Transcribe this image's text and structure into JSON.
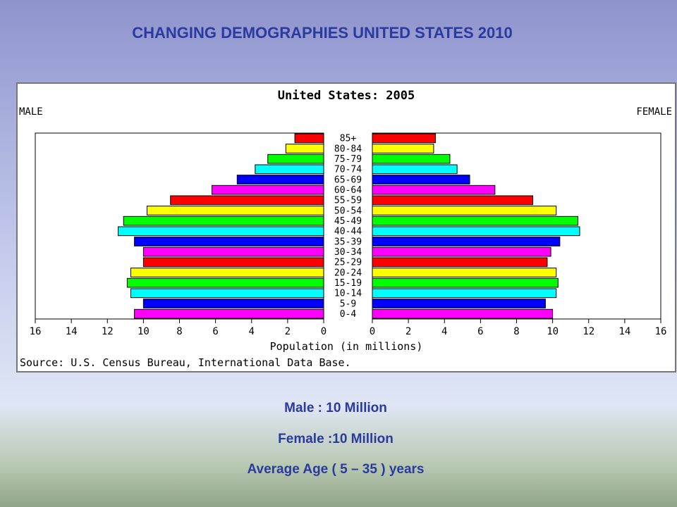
{
  "slide": {
    "title": "CHANGING DEMOGRAPHIES UNITED STATES 2010",
    "notes": [
      "Male : 10 Million",
      "Female :10 Million",
      "Average Age ( 5 – 35 ) years"
    ]
  },
  "chart_data": {
    "type": "bar",
    "title": "United States: 2005",
    "left_label": "MALE",
    "right_label": "FEMALE",
    "xlabel": "Population (in millions)",
    "source": "Source: U.S. Census Bureau, International Data Base.",
    "xlim": [
      0,
      16
    ],
    "ticks": [
      16,
      14,
      12,
      10,
      8,
      6,
      4,
      2,
      0
    ],
    "categories": [
      "85+",
      "80-84",
      "75-79",
      "70-74",
      "65-69",
      "60-64",
      "55-59",
      "50-54",
      "45-49",
      "40-44",
      "35-39",
      "30-34",
      "25-29",
      "20-24",
      "15-19",
      "10-14",
      "5-9",
      "0-4"
    ],
    "colors": [
      "#ff0000",
      "#ffff00",
      "#00ff00",
      "#00ffff",
      "#0000ff",
      "#ff00ff",
      "#ff0000",
      "#ffff00",
      "#00ff00",
      "#00ffff",
      "#0000ff",
      "#ff00ff",
      "#ff0000",
      "#ffff00",
      "#00ff00",
      "#00ffff",
      "#0000ff",
      "#ff00ff"
    ],
    "series": [
      {
        "name": "MALE",
        "values": [
          1.6,
          2.1,
          3.1,
          3.8,
          4.8,
          6.2,
          8.5,
          9.8,
          11.1,
          11.4,
          10.5,
          10.0,
          10.0,
          10.7,
          10.9,
          10.7,
          10.0,
          10.5
        ]
      },
      {
        "name": "FEMALE",
        "values": [
          3.5,
          3.4,
          4.3,
          4.7,
          5.4,
          6.8,
          8.9,
          10.2,
          11.4,
          11.5,
          10.4,
          9.9,
          9.7,
          10.2,
          10.3,
          10.2,
          9.6,
          10.0
        ]
      }
    ]
  }
}
